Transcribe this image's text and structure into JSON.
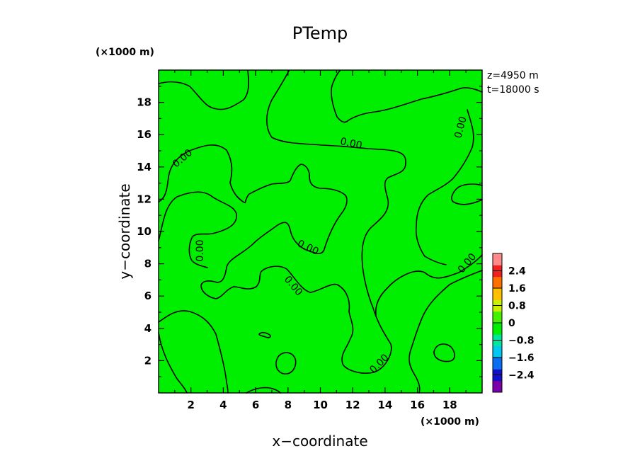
{
  "chart_data": {
    "type": "contour",
    "title": "PTemp",
    "xlabel": "x−coordinate",
    "ylabel": "y−coordinate",
    "x_unit": "(×1000 m)",
    "y_unit": "(×1000 m)",
    "annotations": [
      "z=4950 m",
      "t=18000 s"
    ],
    "xlim": [
      0,
      20
    ],
    "ylim": [
      0,
      20
    ],
    "x_ticks": [
      "2",
      "4",
      "6",
      "8",
      "10",
      "12",
      "14",
      "16",
      "18"
    ],
    "y_ticks": [
      "2",
      "4",
      "6",
      "8",
      "10",
      "12",
      "14",
      "16",
      "18"
    ],
    "contour_levels": [
      0.0
    ],
    "contour_label": "0.00",
    "fill_color": "#00ee00",
    "field_range": [
      -0.8,
      0.8
    ],
    "colorbar": {
      "tick_labels": [
        "2.4",
        "1.6",
        "0.8",
        "0",
        "−0.8",
        "−1.6",
        "−2.4"
      ],
      "range": [
        -3.2,
        3.2
      ],
      "colors": [
        "#7a00a8",
        "#1010c8",
        "#0a6ef0",
        "#00c8f0",
        "#00e6a0",
        "#00ee00",
        "#44f000",
        "#c8f000",
        "#ffc000",
        "#ff7000",
        "#f02020",
        "#ff8a8a"
      ]
    }
  }
}
